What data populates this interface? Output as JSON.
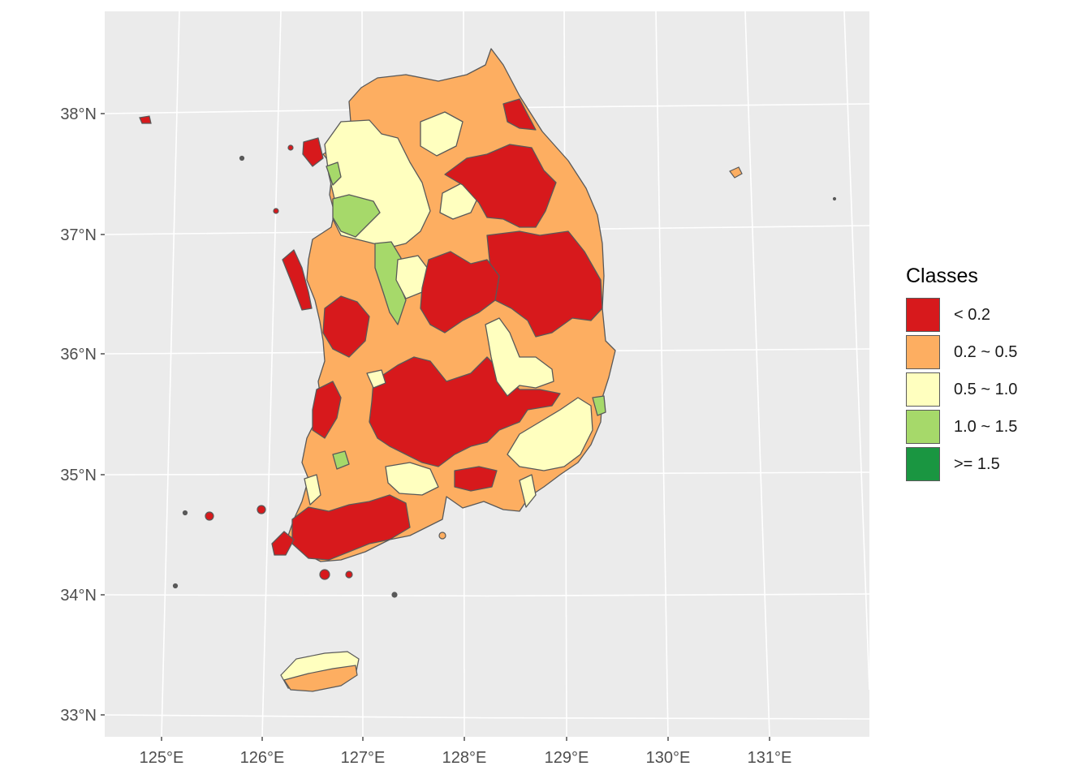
{
  "legend": {
    "title": "Classes",
    "items": [
      {
        "label": "< 0.2",
        "color": "#d7191c"
      },
      {
        "label": "0.2 ~ 0.5",
        "color": "#fdae61"
      },
      {
        "label": "0.5 ~ 1.0",
        "color": "#ffffbf"
      },
      {
        "label": "1.0 ~ 1.5",
        "color": "#a6d96a"
      },
      {
        "label": ">= 1.5",
        "color": "#1a9641"
      }
    ]
  },
  "axes": {
    "y_ticks": [
      "38°N",
      "37°N",
      "36°N",
      "35°N",
      "34°N",
      "33°N"
    ],
    "x_ticks": [
      "125°E",
      "126°E",
      "127°E",
      "128°E",
      "129°E",
      "130°E",
      "131°E"
    ]
  },
  "colors": {
    "panel_background": "#ebebeb",
    "grid": "#ffffff",
    "boundary": "#595959"
  }
}
